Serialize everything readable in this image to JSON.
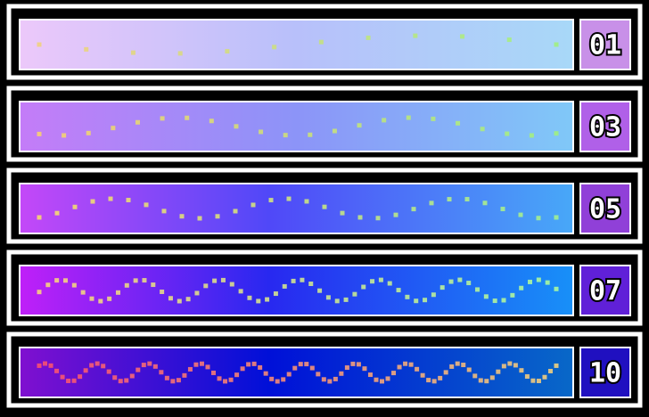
{
  "levels": [
    {
      "label": "01"
    },
    {
      "label": "03"
    },
    {
      "label": "05"
    },
    {
      "label": "07"
    },
    {
      "label": "10"
    }
  ]
}
